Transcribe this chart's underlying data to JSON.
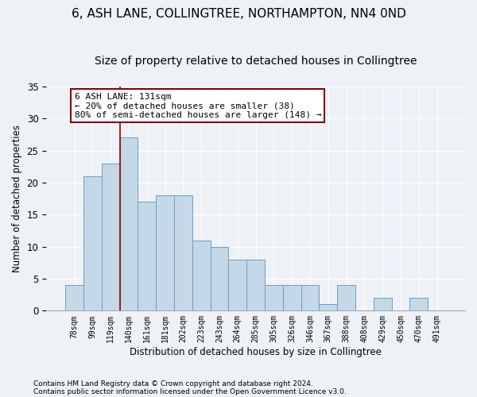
{
  "title": "6, ASH LANE, COLLINGTREE, NORTHAMPTON, NN4 0ND",
  "subtitle": "Size of property relative to detached houses in Collingtree",
  "xlabel": "Distribution of detached houses by size in Collingtree",
  "ylabel": "Number of detached properties",
  "bar_color": "#c5d8e8",
  "bar_edge_color": "#6b9dc2",
  "categories": [
    "78sqm",
    "99sqm",
    "119sqm",
    "140sqm",
    "161sqm",
    "181sqm",
    "202sqm",
    "223sqm",
    "243sqm",
    "264sqm",
    "285sqm",
    "305sqm",
    "326sqm",
    "346sqm",
    "367sqm",
    "388sqm",
    "408sqm",
    "429sqm",
    "450sqm",
    "470sqm",
    "491sqm"
  ],
  "values": [
    4,
    21,
    23,
    27,
    17,
    18,
    18,
    11,
    10,
    8,
    8,
    4,
    4,
    4,
    1,
    4,
    0,
    2,
    0,
    2,
    0
  ],
  "vline_x_index": 2.5,
  "vline_color": "#8b0000",
  "annotation_line1": "6 ASH LANE: 131sqm",
  "annotation_line2": "← 20% of detached houses are smaller (38)",
  "annotation_line3": "80% of semi-detached houses are larger (148) →",
  "annotation_box_color": "white",
  "annotation_box_edge_color": "#8b0000",
  "ylim": [
    0,
    35
  ],
  "yticks": [
    0,
    5,
    10,
    15,
    20,
    25,
    30,
    35
  ],
  "footer1": "Contains HM Land Registry data © Crown copyright and database right 2024.",
  "footer2": "Contains public sector information licensed under the Open Government Licence v3.0.",
  "bg_color": "#eef2f7",
  "grid_color": "#ffffff",
  "title_fontsize": 11,
  "subtitle_fontsize": 10,
  "annotation_fontsize": 8
}
